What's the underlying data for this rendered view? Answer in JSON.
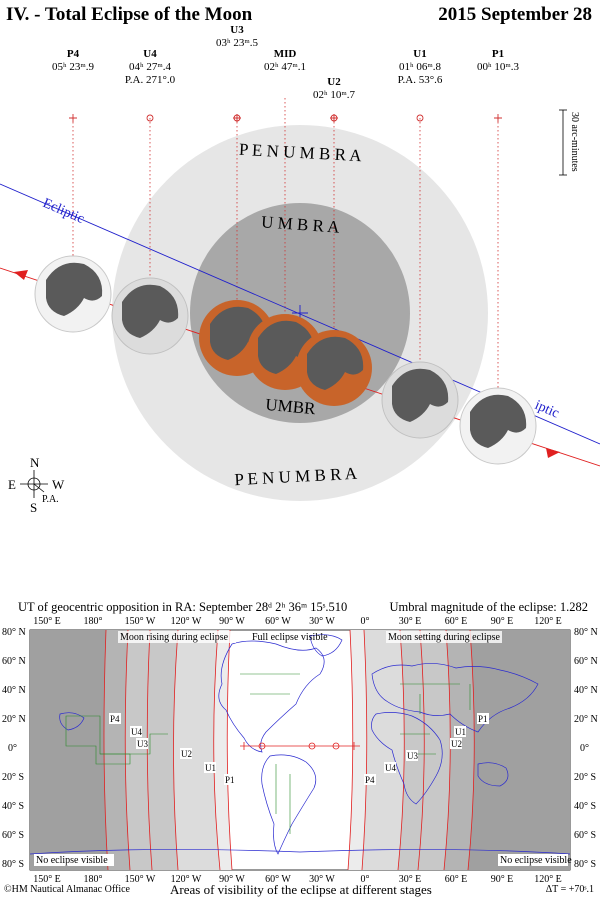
{
  "header": {
    "title": "IV. - Total Eclipse of the Moon",
    "date": "2015 September 28"
  },
  "contacts": [
    {
      "name": "P4",
      "time": "05ʰ 23ᵐ.9",
      "pa": ""
    },
    {
      "name": "U4",
      "time": "04ʰ 27ᵐ.4",
      "pa": "P.A. 271°.0"
    },
    {
      "name": "U3",
      "time": "03ʰ 23ᵐ.5",
      "pa": ""
    },
    {
      "name": "MID",
      "time": "02ʰ 47ᵐ.1",
      "pa": ""
    },
    {
      "name": "U2",
      "time": "02ʰ 10ᵐ.7",
      "pa": ""
    },
    {
      "name": "U1",
      "time": "01ʰ 06ᵐ.8",
      "pa": "P.A. 53°.6"
    },
    {
      "name": "P1",
      "time": "00ʰ 10ᵐ.3",
      "pa": ""
    }
  ],
  "scale_label": "30 arc-minutes",
  "shadow_labels": {
    "penumbra": "P E N U M B R A",
    "umbra": "U M B R A",
    "umbra_partial": "UMBR"
  },
  "ecliptic_label": "Ecliptic",
  "ecliptic_label_right": "iptic",
  "compass": {
    "n": "N",
    "s": "S",
    "e": "E",
    "w": "W",
    "pa": "P.A."
  },
  "map": {
    "opposition": "UT of geocentric opposition in RA: September 28ᵈ 2ʰ 36ᵐ 15ˢ.510",
    "magnitude": "Umbral magnitude of the eclipse: 1.282",
    "lon_labels": [
      "150° E",
      "180°",
      "150° W",
      "120° W",
      "90° W",
      "60° W",
      "30° W",
      "0°",
      "30° E",
      "60° E",
      "90° E",
      "120° E"
    ],
    "lat_labels": [
      "80° N",
      "60° N",
      "40° N",
      "20° N",
      "0°",
      "20° S",
      "40° S",
      "60° S",
      "80° S"
    ],
    "region_labels": {
      "rising": "Moon rising during eclipse",
      "full": "Full eclipse visible",
      "setting": "Moon setting during eclipse",
      "none_left": "No eclipse visible",
      "none_right": "No eclipse visible"
    },
    "curve_labels_west": [
      "P4",
      "U4",
      "U3",
      "U2",
      "U1",
      "P1"
    ],
    "curve_labels_east": [
      "P4",
      "U4",
      "U3",
      "U2",
      "U1",
      "P1"
    ],
    "caption": "Areas of visibility of the eclipse at different stages",
    "credit": "©HM Nautical Almanac Office",
    "delta_t": "ΔT = +70ˢ.1"
  },
  "colors": {
    "penumbra": "#e6e6e6",
    "umbra": "#a8a8a8",
    "moon_total": "#c8642a",
    "moon_normal": "#5a5a5a",
    "ecliptic": "#2020cc",
    "path": "#e02020",
    "map_dark": "#a0a0a0",
    "map_mid": "#c8c8c8",
    "map_light": "#e8e8e8"
  }
}
